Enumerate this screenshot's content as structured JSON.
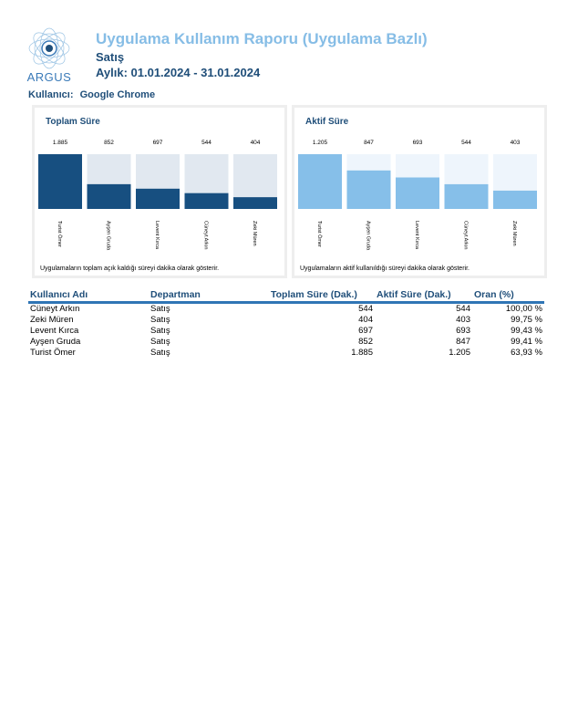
{
  "header": {
    "logo_text": "ARGUS",
    "title": "Uygulama Kullanım Raporu (Uygulama Bazlı)",
    "subtitle": "Satış",
    "period": "Aylık: 01.01.2024 - 31.01.2024",
    "user_label": "Kullanıcı:",
    "user_value": "Google Chrome"
  },
  "chart_data": [
    {
      "type": "bar",
      "title": "Toplam Süre",
      "categories": [
        "Turist Ömer",
        "Ayşen Gruda",
        "Levent Kırca",
        "Cüneyt Arkın",
        "Zeki Müren"
      ],
      "values": [
        1885,
        852,
        697,
        544,
        404
      ],
      "value_labels": [
        "1.885",
        "852",
        "697",
        "544",
        "404"
      ],
      "ylim": [
        0,
        1885
      ],
      "bar_color": "#174f80",
      "track_color": "#e1e8f0",
      "note": "Uygulamaların toplam açık kaldığı süreyi dakika olarak gösterir."
    },
    {
      "type": "bar",
      "title": "Aktif Süre",
      "categories": [
        "Turist Ömer",
        "Ayşen Gruda",
        "Levent Kırca",
        "Cüneyt Arkın",
        "Zeki Müren"
      ],
      "values": [
        1205,
        847,
        693,
        544,
        403
      ],
      "value_labels": [
        "1.205",
        "847",
        "693",
        "544",
        "403"
      ],
      "ylim": [
        0,
        1205
      ],
      "bar_color": "#86bfe9",
      "track_color": "#eef5fc",
      "note": "Uygulamaların aktif kullanıldığı süreyi dakika olarak gösterir."
    }
  ],
  "table": {
    "columns": [
      "Kullanıcı Adı",
      "Departman",
      "Toplam Süre (Dak.)",
      "Aktif Süre (Dak.)",
      "Oran (%)"
    ],
    "rows": [
      [
        "Cüneyt Arkın",
        "Satış",
        "544",
        "544",
        "100,00 %"
      ],
      [
        "Zeki Müren",
        "Satış",
        "404",
        "403",
        "99,75 %"
      ],
      [
        "Levent Kırca",
        "Satış",
        "697",
        "693",
        "99,43 %"
      ],
      [
        "Ayşen Gruda",
        "Satış",
        "852",
        "847",
        "99,41 %"
      ],
      [
        "Turist Ömer",
        "Satış",
        "1.885",
        "1.205",
        "63,93 %"
      ]
    ]
  }
}
